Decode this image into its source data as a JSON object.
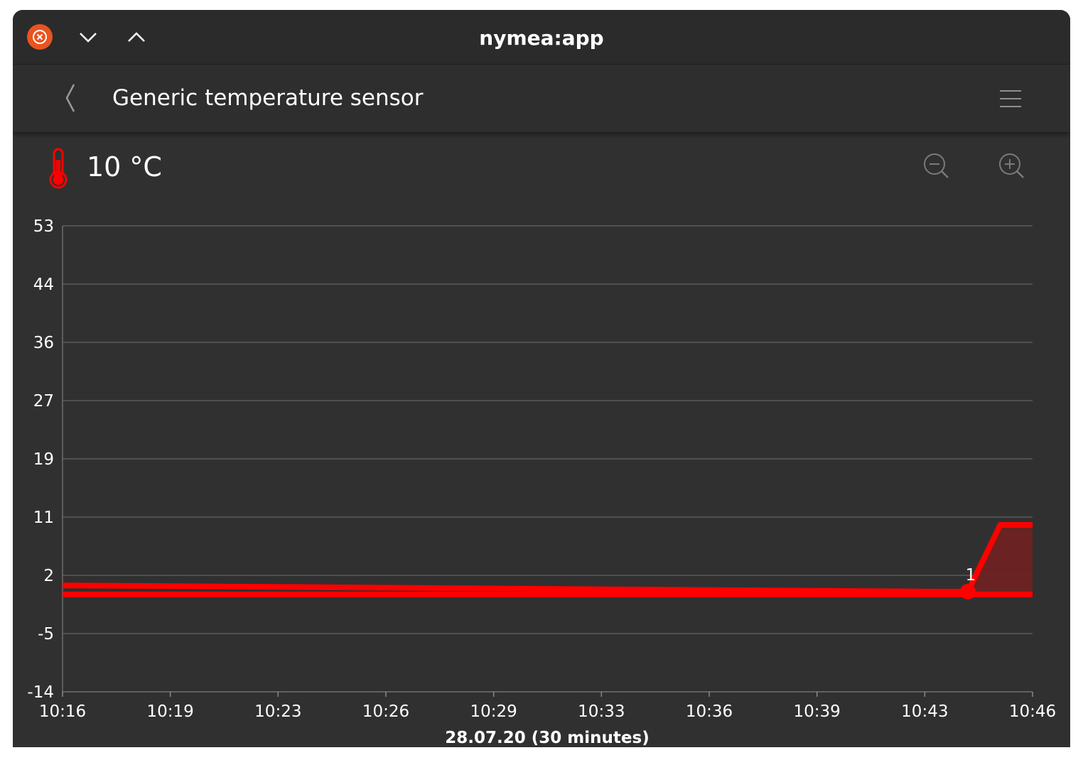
{
  "window": {
    "title": "nymea:app"
  },
  "header": {
    "title": "Generic temperature sensor"
  },
  "sensor": {
    "value": "10 °C"
  },
  "icons": {
    "close": "close-icon",
    "minimize": "chevron-down-icon",
    "maximize": "chevron-up-icon",
    "back": "back-icon",
    "menu": "hamburger-menu-icon",
    "thermometer": "thermometer-icon",
    "zoom_out": "zoom-out-icon",
    "zoom_in": "zoom-in-icon"
  },
  "colors": {
    "accent": "#ff0000",
    "close": "#e95420",
    "fill": "#6e2222"
  },
  "chart_data": {
    "type": "line",
    "title": "",
    "xlabel": "28.07.20 (30 minutes)",
    "ylabel": "",
    "x_ticks": [
      "10:16",
      "10:19",
      "10:23",
      "10:26",
      "10:29",
      "10:33",
      "10:36",
      "10:39",
      "10:43",
      "10:46"
    ],
    "y_ticks": [
      "-14",
      "-5",
      "2",
      "11",
      "19",
      "27",
      "36",
      "44",
      "53"
    ],
    "ylim": [
      -14,
      53
    ],
    "grid": true,
    "series": [
      {
        "x": [
          "10:16",
          "10:19",
          "10:22",
          "10:25",
          "10:28",
          "10:31",
          "10:34",
          "10:37",
          "10:40",
          "10:43",
          "10:44",
          "10:45",
          "10:46"
        ],
        "values": [
          1.3,
          1.2,
          1.1,
          1.0,
          0.9,
          0.8,
          0.7,
          0.6,
          0.5,
          0.4,
          0.4,
          10,
          10
        ]
      }
    ],
    "baseline": 0,
    "annotations": [
      {
        "x": "10:44",
        "y": 0.4,
        "text": "1"
      }
    ]
  }
}
